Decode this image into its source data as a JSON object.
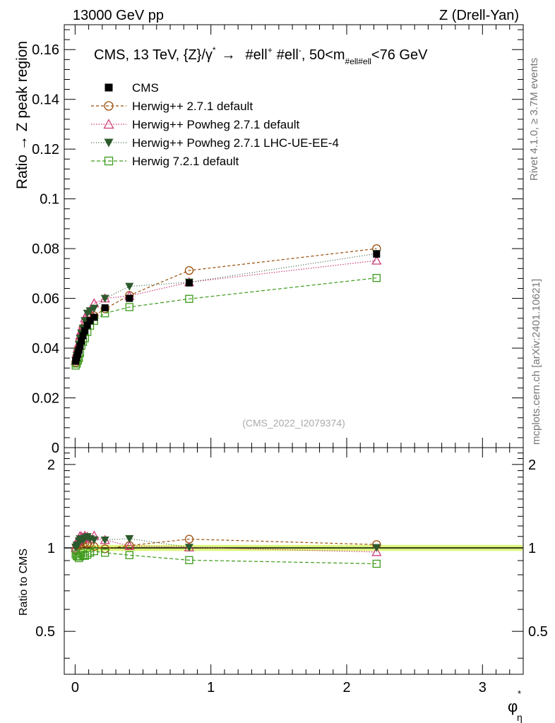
{
  "header": {
    "left": "13000 GeV pp",
    "right": "Z (Drell-Yan)"
  },
  "side_labels": {
    "rivet": "Rivet 4.1.0, ≥ 3.7M events",
    "mcplots": "mcplots.cern.ch [arXiv:2401.10621]"
  },
  "colors": {
    "cms": "#000000",
    "herwigpp": "#9a4e0a",
    "powheg": "#cc3d77",
    "powheg_ue": "#2d5a2d",
    "herwig7": "#3c9a1a",
    "band": "#d9f56e"
  },
  "chart_data": {
    "type": "scatter",
    "title": "CMS, 13 TeV, {Z}/γ* → #ell+ #ell-, 50<m#ell#ell<76 GeV",
    "title_parts": {
      "main": "CMS, 13 TeV, {Z}/γ",
      "star": "*",
      "arrow": "→",
      "ell1": "#ell",
      "plus": "+",
      "ell2": "#ell",
      "minus": "-",
      "range_a": ", 50<m",
      "sub": "#ell#ell",
      "range_b": "<76 GeV"
    },
    "watermark": "(CMS_2022_I2079374)",
    "xlabel": "φ",
    "xlabel_sub": "η",
    "xlabel_sup": "*",
    "ylabel": "Ratio → Z peak region",
    "ratio_ylabel": "Ratio to CMS",
    "xlim": [
      -0.08,
      3.3
    ],
    "ylim": [
      0,
      0.17
    ],
    "ratio_ylim": [
      0.35,
      2.3
    ],
    "x_ticks": [
      0,
      1,
      2,
      3
    ],
    "x_tick_labels": [
      "0",
      "1",
      "2",
      "3"
    ],
    "y_ticks": [
      0,
      0.02,
      0.04,
      0.06,
      0.08,
      0.1,
      0.12,
      0.14,
      0.16
    ],
    "y_tick_labels": [
      "0",
      "0.02",
      "0.04",
      "0.06",
      "0.08",
      "0.1",
      "0.12",
      "0.14",
      "0.16"
    ],
    "ratio_ticks": [
      0.5,
      1,
      2
    ],
    "ratio_tick_labels": [
      "0.5",
      "1",
      "2"
    ],
    "legend_position": "top-left",
    "x": [
      0.004,
      0.012,
      0.02,
      0.028,
      0.036,
      0.046,
      0.058,
      0.072,
      0.09,
      0.11,
      0.14,
      0.22,
      0.4,
      0.84,
      2.22
    ],
    "series": [
      {
        "name": "CMS",
        "key": "cms",
        "marker": "square-filled",
        "values": [
          0.0348,
          0.0362,
          0.0376,
          0.0392,
          0.0408,
          0.0428,
          0.045,
          0.047,
          0.0492,
          0.051,
          0.0524,
          0.0562,
          0.06,
          0.0662,
          0.0778
        ]
      },
      {
        "name": "Herwig++ 2.7.1 default",
        "key": "herwigpp",
        "marker": "circle-open",
        "dash": "4,3",
        "values": [
          0.0342,
          0.0368,
          0.039,
          0.04,
          0.0428,
          0.045,
          0.048,
          0.049,
          0.051,
          0.053,
          0.053,
          0.0558,
          0.0612,
          0.0712,
          0.08
        ]
      },
      {
        "name": "Herwig++ Powheg 2.7.1 default",
        "key": "powheg",
        "marker": "triangle-open",
        "dash": "1.5,2",
        "values": [
          0.0348,
          0.038,
          0.04,
          0.042,
          0.045,
          0.047,
          0.049,
          0.052,
          0.054,
          0.055,
          0.058,
          0.06,
          0.061,
          0.0665,
          0.0752
        ]
      },
      {
        "name": "Herwig++ Powheg 2.7.1 LHC-UE-EE-4",
        "key": "powheg_ue",
        "marker": "triangle-down-filled",
        "dash": "1,2.5",
        "values": [
          0.035,
          0.037,
          0.0385,
          0.0415,
          0.044,
          0.046,
          0.048,
          0.051,
          0.054,
          0.055,
          0.056,
          0.06,
          0.0648,
          0.0665,
          0.078
        ]
      },
      {
        "name": "Herwig 7.2.1 default",
        "key": "herwig7",
        "marker": "square-open",
        "dash": "5,3",
        "values": [
          0.033,
          0.0338,
          0.035,
          0.036,
          0.038,
          0.041,
          0.0425,
          0.044,
          0.0465,
          0.049,
          0.051,
          0.054,
          0.0565,
          0.0598,
          0.0682
        ]
      }
    ]
  }
}
